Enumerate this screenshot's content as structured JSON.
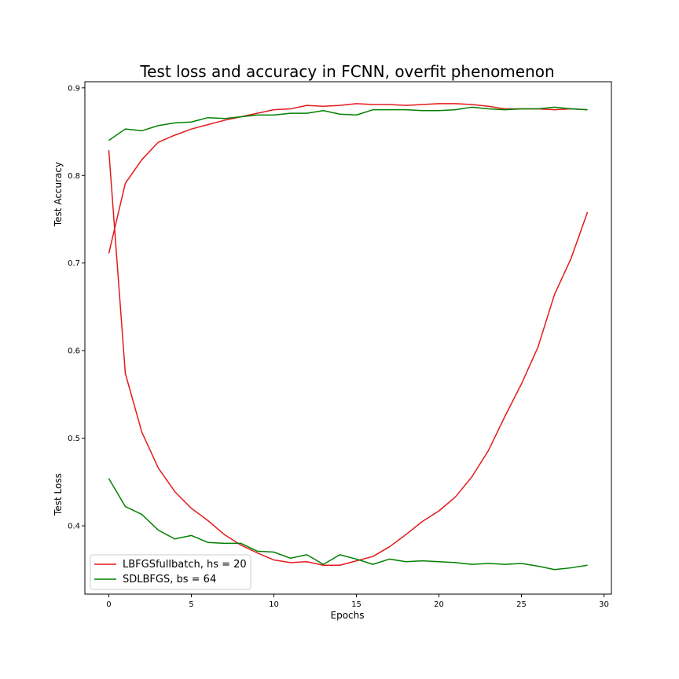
{
  "chart_data": {
    "type": "line",
    "title": "Test loss and accuracy in FCNN, overfit phenomenon",
    "xlabel": "Epochs",
    "ylabel_upper": "Test Accuracy",
    "ylabel_lower": "Test Loss",
    "xlim": [
      -1.45,
      30.45
    ],
    "ylim": [
      0.322,
      0.907
    ],
    "xticks": [
      0,
      5,
      10,
      15,
      20,
      25,
      30
    ],
    "yticks": [
      0.4,
      0.5,
      0.6,
      0.7,
      0.8,
      0.9
    ],
    "grid": false,
    "legend_position": "lower-left",
    "x": [
      0,
      1,
      2,
      3,
      4,
      5,
      6,
      7,
      8,
      9,
      10,
      11,
      12,
      13,
      14,
      15,
      16,
      17,
      18,
      19,
      20,
      21,
      22,
      23,
      24,
      25,
      26,
      27,
      28,
      29
    ],
    "series": [
      {
        "name": "LBFGSfullbatch, hs = 20",
        "color": "#e41a1c",
        "values": [
          0.711,
          0.791,
          0.818,
          0.838,
          0.846,
          0.853,
          0.858,
          0.863,
          0.867,
          0.871,
          0.875,
          0.876,
          0.88,
          0.879,
          0.88,
          0.882,
          0.881,
          0.881,
          0.88,
          0.881,
          0.882,
          0.882,
          0.881,
          0.879,
          0.876,
          0.876,
          0.876,
          0.875,
          0.876,
          0.875
        ]
      },
      {
        "name": "",
        "color": "#e41a1c",
        "values": [
          0.829,
          0.574,
          0.507,
          0.466,
          0.439,
          0.42,
          0.406,
          0.39,
          0.378,
          0.369,
          0.361,
          0.358,
          0.359,
          0.355,
          0.355,
          0.36,
          0.365,
          0.376,
          0.39,
          0.405,
          0.417,
          0.433,
          0.456,
          0.486,
          0.525,
          0.562,
          0.604,
          0.664,
          0.705,
          0.758
        ]
      },
      {
        "name": "SDLBFGS, bs = 64",
        "color": "#008000",
        "values": [
          0.84,
          0.853,
          0.851,
          0.857,
          0.86,
          0.861,
          0.866,
          0.865,
          0.867,
          0.869,
          0.869,
          0.871,
          0.871,
          0.874,
          0.87,
          0.869,
          0.875,
          0.875,
          0.875,
          0.874,
          0.874,
          0.875,
          0.878,
          0.876,
          0.875,
          0.876,
          0.876,
          0.878,
          0.876,
          0.875
        ]
      },
      {
        "name": "",
        "color": "#008000",
        "values": [
          0.454,
          0.422,
          0.413,
          0.395,
          0.385,
          0.389,
          0.381,
          0.38,
          0.38,
          0.371,
          0.37,
          0.363,
          0.367,
          0.356,
          0.367,
          0.362,
          0.356,
          0.362,
          0.359,
          0.36,
          0.359,
          0.358,
          0.356,
          0.357,
          0.356,
          0.357,
          0.354,
          0.35,
          0.352,
          0.355
        ]
      }
    ]
  }
}
